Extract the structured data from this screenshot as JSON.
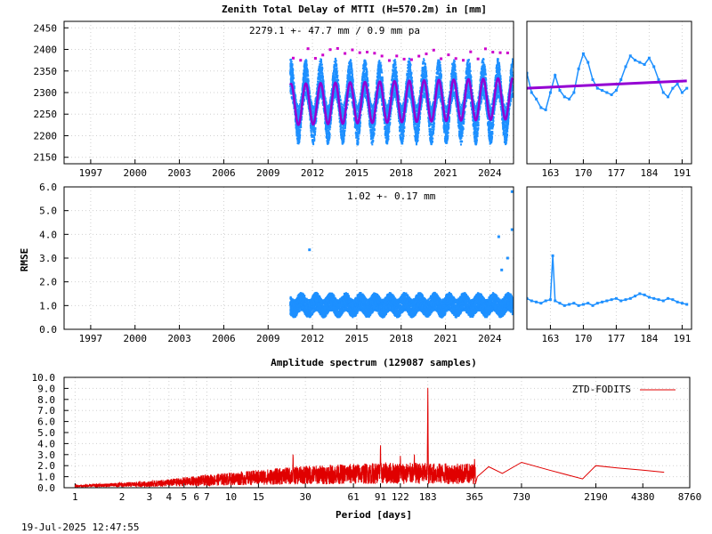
{
  "footer_timestamp": "19-Jul-2025 12:47:55",
  "colors": {
    "blue": "#1e90ff",
    "purple": "#9400d3",
    "magenta": "#cc00cc",
    "red": "#e00000",
    "grid": "#d0d0d0"
  },
  "chart_data": [
    {
      "id": "ztd-longterm",
      "type": "scatter",
      "title": "Zenith Total Delay of MTTI (H=570.2m) in [mm]",
      "annotation": "2279.1 +-  47.7 mm /  0.9 mm pa",
      "xlabel": "",
      "ylabel": "",
      "xlim": [
        1995.2,
        2025.6
      ],
      "ylim": [
        2135,
        2465
      ],
      "x_ticks": [
        "1997",
        "2000",
        "2003",
        "2006",
        "2009",
        "2012",
        "2015",
        "2018",
        "2021",
        "2024"
      ],
      "x_tick_values": [
        1997,
        2000,
        2003,
        2006,
        2009,
        2012,
        2015,
        2018,
        2021,
        2024
      ],
      "y_ticks": [
        "2150",
        "2200",
        "2250",
        "2300",
        "2350",
        "2400",
        "2450"
      ],
      "y_tick_values": [
        2150,
        2200,
        2250,
        2300,
        2350,
        2400,
        2450
      ],
      "data_start": 2010.5,
      "data_end": 2025.55,
      "series": [
        {
          "role": "observations",
          "mean": 2279.1,
          "seasonal_amplitude": 55,
          "noise": 45
        },
        {
          "role": "fit",
          "mean": 2279.1,
          "amplitude": 47.7,
          "trend_per_year": 0.9
        }
      ],
      "grid": true
    },
    {
      "id": "ztd-recent",
      "type": "line",
      "xlim": [
        158,
        193
      ],
      "ylim": [
        2135,
        2465
      ],
      "x_ticks": [
        "163",
        "170",
        "177",
        "184",
        "191"
      ],
      "x_tick_values": [
        163,
        170,
        177,
        184,
        191
      ],
      "series": [
        {
          "role": "observations",
          "x": [
            158,
            159,
            160,
            161,
            162,
            163,
            164,
            165,
            166,
            167,
            168,
            169,
            170,
            171,
            172,
            173,
            174,
            175,
            176,
            177,
            178,
            179,
            180,
            181,
            182,
            183,
            184,
            185,
            186,
            187,
            188,
            189,
            190,
            191,
            192
          ],
          "y": [
            2345,
            2300,
            2285,
            2265,
            2260,
            2300,
            2340,
            2305,
            2290,
            2285,
            2300,
            2355,
            2390,
            2370,
            2330,
            2310,
            2305,
            2300,
            2295,
            2305,
            2330,
            2360,
            2385,
            2375,
            2370,
            2365,
            2380,
            2360,
            2330,
            2300,
            2290,
            2310,
            2320,
            2300,
            2310
          ]
        },
        {
          "role": "fit",
          "x": [
            158,
            192
          ],
          "y": [
            2310,
            2327
          ]
        }
      ],
      "grid": true
    },
    {
      "id": "rmse-longterm",
      "type": "scatter",
      "annotation": "1.02 +-  0.17 mm",
      "ylabel": "RMSE",
      "xlim": [
        1995.2,
        2025.6
      ],
      "ylim": [
        0,
        6
      ],
      "x_ticks": [
        "1997",
        "2000",
        "2003",
        "2006",
        "2009",
        "2012",
        "2015",
        "2018",
        "2021",
        "2024"
      ],
      "x_tick_values": [
        1997,
        2000,
        2003,
        2006,
        2009,
        2012,
        2015,
        2018,
        2021,
        2024
      ],
      "y_ticks": [
        "0.0",
        "1.0",
        "2.0",
        "3.0",
        "4.0",
        "5.0",
        "6.0"
      ],
      "y_tick_values": [
        0,
        1,
        2,
        3,
        4,
        5,
        6
      ],
      "data_start": 2010.5,
      "data_end": 2025.55,
      "series": [
        {
          "role": "observations",
          "mean": 1.02,
          "sd": 0.17
        }
      ],
      "outliers": [
        {
          "x": 2011.8,
          "y": 3.35
        },
        {
          "x": 2024.6,
          "y": 3.9
        },
        {
          "x": 2025.2,
          "y": 3.0
        },
        {
          "x": 2025.5,
          "y": 4.2
        },
        {
          "x": 2025.5,
          "y": 5.8
        },
        {
          "x": 2024.8,
          "y": 2.5
        }
      ],
      "grid": true
    },
    {
      "id": "rmse-recent",
      "type": "line",
      "xlim": [
        158,
        193
      ],
      "ylim": [
        0,
        6
      ],
      "x_ticks": [
        "163",
        "170",
        "177",
        "184",
        "191"
      ],
      "x_tick_values": [
        163,
        170,
        177,
        184,
        191
      ],
      "series": [
        {
          "role": "observations",
          "x": [
            158,
            159,
            160,
            161,
            162,
            163,
            163.5,
            164,
            165,
            166,
            167,
            168,
            169,
            170,
            171,
            172,
            173,
            174,
            175,
            176,
            177,
            178,
            179,
            180,
            181,
            182,
            183,
            184,
            185,
            186,
            187,
            188,
            189,
            190,
            191,
            192
          ],
          "y": [
            1.3,
            1.2,
            1.15,
            1.1,
            1.2,
            1.25,
            3.1,
            1.2,
            1.1,
            1.0,
            1.05,
            1.1,
            1.0,
            1.05,
            1.1,
            1.0,
            1.1,
            1.15,
            1.2,
            1.25,
            1.3,
            1.2,
            1.25,
            1.3,
            1.4,
            1.5,
            1.45,
            1.35,
            1.3,
            1.25,
            1.2,
            1.3,
            1.25,
            1.15,
            1.1,
            1.05
          ]
        }
      ],
      "grid": true
    },
    {
      "id": "spectrum",
      "type": "line",
      "title": "Amplitude spectrum (129087 samples)",
      "xlabel": "Period [days]",
      "xscale": "log",
      "xlim": [
        0.85,
        8760
      ],
      "ylim": [
        0,
        10
      ],
      "x_ticks": [
        "1",
        "2",
        "3",
        "4",
        "5",
        "6",
        "7",
        "10",
        "15",
        "30",
        "61",
        "91",
        "122",
        "183",
        "365",
        "730",
        "2190",
        "4380",
        "8760"
      ],
      "x_tick_values": [
        1,
        2,
        3,
        4,
        5,
        6,
        7,
        10,
        15,
        30,
        61,
        91,
        122,
        183,
        365,
        730,
        2190,
        4380,
        8760
      ],
      "y_ticks": [
        "0.0",
        "1.0",
        "2.0",
        "3.0",
        "4.0",
        "5.0",
        "6.0",
        "7.0",
        "8.0",
        "9.0",
        "10.0"
      ],
      "y_tick_values": [
        0,
        1,
        2,
        3,
        4,
        5,
        6,
        7,
        8,
        9,
        10
      ],
      "legend": "ZTD-FODITS",
      "legend_position": "top-right",
      "series": [
        {
          "name": "ZTD-FODITS",
          "peaks": [
            {
              "x": 183,
              "y": 9.4
            },
            {
              "x": 91,
              "y": 4.1
            },
            {
              "x": 25,
              "y": 3.2
            },
            {
              "x": 365,
              "y": 2.6
            },
            {
              "x": 730,
              "y": 2.4
            },
            {
              "x": 122,
              "y": 3.0
            },
            {
              "x": 150,
              "y": 3.1
            }
          ],
          "envelope": [
            {
              "x": 1,
              "y": 0.25
            },
            {
              "x": 3,
              "y": 0.6
            },
            {
              "x": 10,
              "y": 1.4
            },
            {
              "x": 30,
              "y": 2.0
            },
            {
              "x": 100,
              "y": 2.3
            },
            {
              "x": 300,
              "y": 2.2
            }
          ],
          "tail": {
            "x": [
              380,
              450,
              550,
              730,
              1100,
              1800,
              2190,
              3000,
              4380,
              6000
            ],
            "y": [
              1.0,
              1.9,
              1.3,
              2.3,
              1.6,
              0.8,
              2.0,
              1.8,
              1.6,
              1.4
            ]
          }
        }
      ],
      "grid": true
    }
  ]
}
